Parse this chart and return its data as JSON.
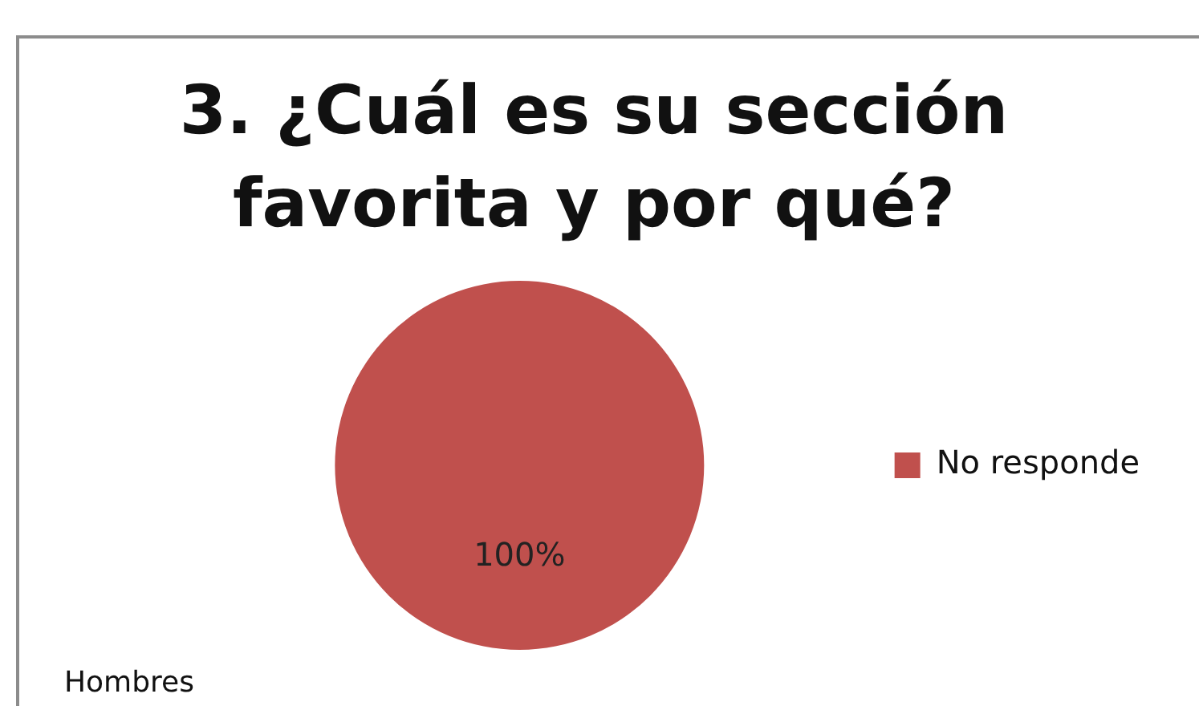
{
  "chart_data": {
    "type": "pie",
    "title": "3. ¿Cuál es su sección favorita y por qué?",
    "categories": [
      "No responde"
    ],
    "values": [
      100
    ],
    "value_labels": [
      "100%"
    ],
    "colors": [
      "#c0504d"
    ],
    "legend": "right",
    "annotations": [
      "Hombres"
    ]
  }
}
